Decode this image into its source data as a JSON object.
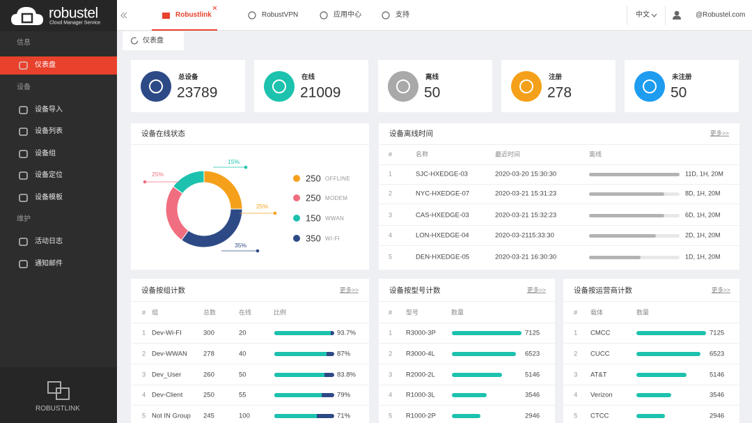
{
  "sidebar": {
    "brand": "robustel",
    "brand_sub": "Cloud Manager Service",
    "sections": [
      {
        "title": "信息",
        "items": [
          "仪表盘"
        ]
      },
      {
        "title": "设备",
        "items": [
          "设备导入",
          "设备列表",
          "设备组",
          "设备定位",
          "设备模板"
        ]
      },
      {
        "title": "维护",
        "items": [
          "活动日志",
          "通知邮件"
        ]
      }
    ],
    "footer": "ROBUSTLINK"
  },
  "topbar": {
    "tabs": [
      "Robustlink",
      "RobustVPN",
      "应用中心",
      "支持"
    ],
    "language": "中文",
    "user": "@Robustel.com"
  },
  "breadcrumb": "仪表盘",
  "stats": [
    {
      "label": "总设备",
      "value": 23789,
      "color": "#2c4a86"
    },
    {
      "label": "在线",
      "value": 21009,
      "color": "#1cc2ae"
    },
    {
      "label": "离线",
      "value": 50,
      "color": "#a9a9a9"
    },
    {
      "label": "注册",
      "value": 278,
      "color": "#f5a01a"
    },
    {
      "label": "未注册",
      "value": 50,
      "color": "#1e9cf0"
    }
  ],
  "online_status": {
    "title": "设备在线状态",
    "segments": [
      {
        "name": "OFFLINE",
        "value": 250,
        "percent": "25%",
        "color": "#f5a01a"
      },
      {
        "name": "MODEM",
        "value": 250,
        "percent": "25%",
        "color": "#f06e80"
      },
      {
        "name": "WWAN",
        "value": 150,
        "percent": "15%",
        "color": "#1cc2ae"
      },
      {
        "name": "WI-FI",
        "value": 350,
        "percent": "35%",
        "color": "#2e4a86"
      }
    ]
  },
  "offline_time": {
    "title": "设备离线时间",
    "more": "更多>>",
    "columns": [
      "#",
      "名称",
      "最近时间",
      "离线"
    ],
    "rows": [
      {
        "no": 1,
        "name": "SJC-HXEDGE-03",
        "last_time": "2020-03-20 15:30:30",
        "offline": "11D, 1H, 20M"
      },
      {
        "no": 2,
        "name": "NYC-HXEDGE-07",
        "last_time": "2020-03-21 15:31:23",
        "offline": "8D, 1H, 20M"
      },
      {
        "no": 3,
        "name": "CAS-HXEDGE-03",
        "last_time": "2020-03-21 15:32:23",
        "offline": "6D, 1H, 20M"
      },
      {
        "no": 4,
        "name": "LON-HXEDGE-04",
        "last_time": "2020-03-2115:33:30",
        "offline": "2D, 1H, 20M"
      },
      {
        "no": 5,
        "name": "DEN-HXEDGE-05",
        "last_time": "2020-03-21 16:30:30",
        "offline": "1D, 1H, 20M"
      }
    ]
  },
  "group_count": {
    "title": "设备按组计数",
    "more": "更多>>",
    "columns": [
      "#",
      "组",
      "总数",
      "在线",
      "比例"
    ],
    "rows": [
      {
        "no": 1,
        "group": "Dev-Wi-FI",
        "total": 300,
        "online": 20,
        "ratio": {
          "value": 93.7,
          "label": "93.7%"
        }
      },
      {
        "no": 2,
        "group": "Dev-WWAN",
        "total": 278,
        "online": 40,
        "ratio": {
          "value": 87,
          "label": "87%"
        }
      },
      {
        "no": 3,
        "group": "Dev_User",
        "total": 260,
        "online": 50,
        "ratio": {
          "value": 83.8,
          "label": "83.8%"
        }
      },
      {
        "no": 4,
        "group": "Dev-Client",
        "total": 250,
        "online": 55,
        "ratio": {
          "value": 79,
          "label": "79%"
        }
      },
      {
        "no": 5,
        "group": "Not IN Group",
        "total": 245,
        "online": 100,
        "ratio": {
          "value": 71,
          "label": "71%"
        }
      }
    ]
  },
  "model_count": {
    "title": "设备按型号计数",
    "more": "更多>>",
    "columns": [
      "#",
      "型号",
      "数量"
    ],
    "rows": [
      {
        "no": 1,
        "model": "R3000-3P",
        "count": 7125
      },
      {
        "no": 2,
        "model": "R3000-4L",
        "count": 6523
      },
      {
        "no": 3,
        "model": "R2000-2L",
        "count": 5146
      },
      {
        "no": 4,
        "model": "R1000-3L",
        "count": 3546
      },
      {
        "no": 5,
        "model": "R1000-2P",
        "count": 2946
      }
    ]
  },
  "carrier_count": {
    "title": "设备按运营商计数",
    "more": "更多>>",
    "columns": [
      "#",
      "载体",
      "数量"
    ],
    "rows": [
      {
        "no": 1,
        "carrier": "CMCC",
        "count": 7125
      },
      {
        "no": 2,
        "carrier": "CUCC",
        "count": 6523
      },
      {
        "no": 3,
        "carrier": "AT&T",
        "count": 5146
      },
      {
        "no": 4,
        "carrier": "Verizon",
        "count": 3546
      },
      {
        "no": 5,
        "carrier": "CTCC",
        "count": 2946
      }
    ]
  }
}
